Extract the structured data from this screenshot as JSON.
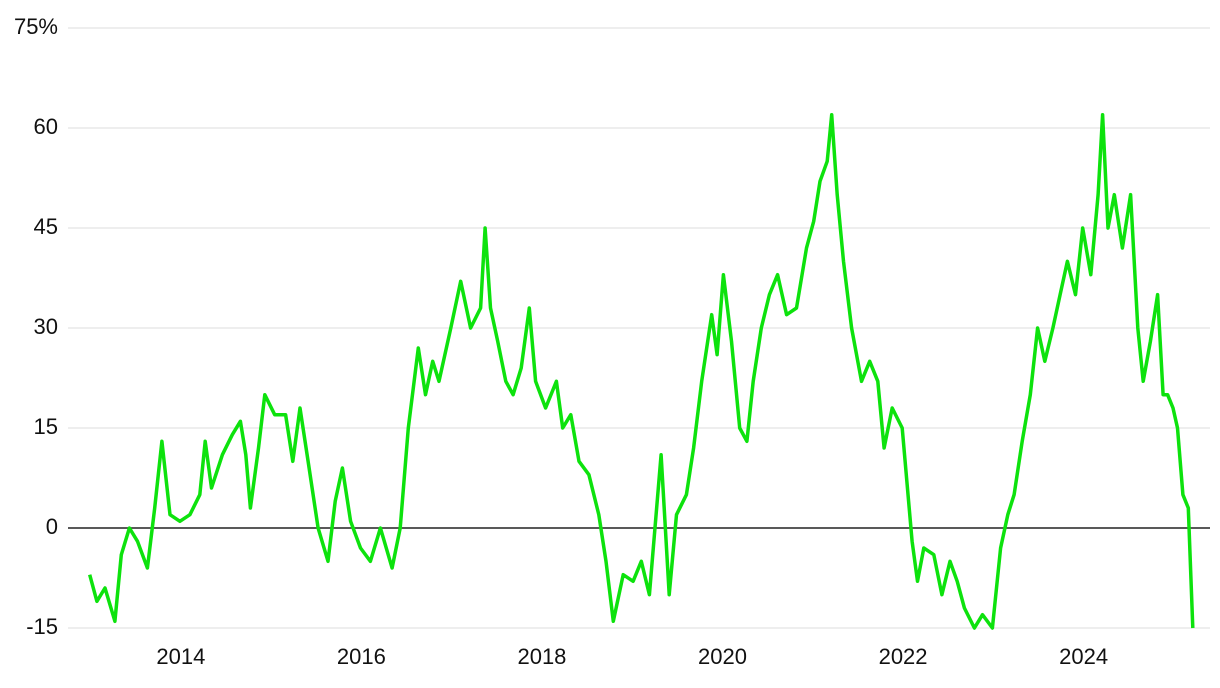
{
  "chart_data": {
    "type": "line",
    "x": [
      2012.99,
      2013.07,
      2013.16,
      2013.27,
      2013.34,
      2013.43,
      2013.52,
      2013.63,
      2013.71,
      2013.79,
      2013.88,
      2013.99,
      2014.1,
      2014.21,
      2014.27,
      2014.34,
      2014.46,
      2014.57,
      2014.66,
      2014.72,
      2014.77,
      2014.86,
      2014.93,
      2015.04,
      2015.16,
      2015.24,
      2015.32,
      2015.41,
      2015.52,
      2015.63,
      2015.71,
      2015.79,
      2015.88,
      2015.99,
      2016.1,
      2016.21,
      2016.34,
      2016.43,
      2016.52,
      2016.63,
      2016.71,
      2016.79,
      2016.86,
      2016.99,
      2017.1,
      2017.21,
      2017.32,
      2017.37,
      2017.43,
      2017.51,
      2017.6,
      2017.68,
      2017.77,
      2017.86,
      2017.93,
      2018.04,
      2018.16,
      2018.23,
      2018.32,
      2018.41,
      2018.52,
      2018.63,
      2018.71,
      2018.79,
      2018.9,
      2019.01,
      2019.1,
      2019.19,
      2019.32,
      2019.41,
      2019.49,
      2019.6,
      2019.68,
      2019.77,
      2019.88,
      2019.94,
      2020.01,
      2020.1,
      2020.19,
      2020.27,
      2020.34,
      2020.43,
      2020.52,
      2020.61,
      2020.71,
      2020.82,
      2020.93,
      2021.01,
      2021.08,
      2021.16,
      2021.21,
      2021.27,
      2021.34,
      2021.43,
      2021.54,
      2021.63,
      2021.72,
      2021.79,
      2021.88,
      2021.99,
      2022.1,
      2022.16,
      2022.23,
      2022.34,
      2022.43,
      2022.52,
      2022.6,
      2022.68,
      2022.79,
      2022.88,
      2022.99,
      2023.08,
      2023.16,
      2023.23,
      2023.32,
      2023.41,
      2023.49,
      2023.57,
      2023.66,
      2023.74,
      2023.82,
      2023.91,
      2023.99,
      2024.08,
      2024.16,
      2024.21,
      2024.27,
      2024.34,
      2024.43,
      2024.52,
      2024.6,
      2024.66,
      2024.74,
      2024.82,
      2024.88,
      2024.93,
      2024.99,
      2025.04,
      2025.1,
      2025.16,
      2025.21
    ],
    "series": [
      {
        "color": "#0de20d",
        "values": [
          -7,
          -11,
          -9,
          -14,
          -4,
          0,
          -2,
          -6,
          3,
          13,
          2,
          1,
          2,
          5,
          13,
          6,
          11,
          14,
          16,
          11,
          3,
          12,
          20,
          17,
          17,
          10,
          18,
          10,
          0,
          -5,
          4,
          9,
          1,
          -3,
          -5,
          0,
          -6,
          0,
          15,
          27,
          20,
          25,
          22,
          30,
          37,
          30,
          33,
          45,
          33,
          28,
          22,
          20,
          24,
          33,
          22,
          18,
          22,
          15,
          17,
          10,
          8,
          2,
          -5,
          -14,
          -7,
          -8,
          -5,
          -10,
          11,
          -10,
          2,
          5,
          12,
          22,
          32,
          26,
          38,
          28,
          15,
          13,
          22,
          30,
          35,
          38,
          32,
          33,
          42,
          46,
          52,
          55,
          62,
          50,
          40,
          30,
          22,
          25,
          22,
          12,
          18,
          15,
          -2,
          -8,
          -3,
          -4,
          -10,
          -5,
          -8,
          -12,
          -15,
          -13,
          -15,
          -3,
          2,
          5,
          13,
          20,
          30,
          25,
          30,
          35,
          40,
          35,
          45,
          38,
          50,
          62,
          45,
          50,
          42,
          50,
          30,
          22,
          28,
          35,
          20,
          20,
          18,
          15,
          5,
          3,
          -15
        ]
      }
    ],
    "xlim": [
      2012.75,
      2025.4
    ],
    "xticks": [
      2014,
      2016,
      2018,
      2020,
      2022,
      2024
    ],
    "ylim": [
      -15,
      75
    ],
    "yticks": [
      -15,
      0,
      15,
      30,
      45,
      60,
      {
        "value": 75,
        "label": "75%"
      }
    ],
    "grid": true
  }
}
